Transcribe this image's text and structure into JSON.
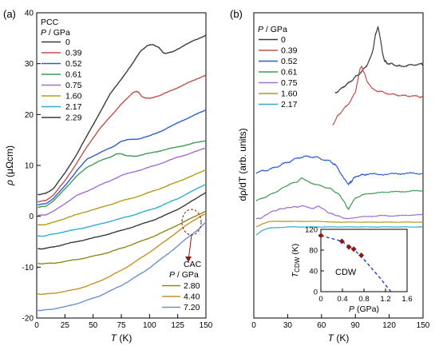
{
  "chart_data": [
    {
      "type": "line",
      "panel_label": "(a)",
      "xlabel_var": "T",
      "xlabel_unit": " (K)",
      "ylabel_var": "ρ",
      "ylabel_unit": " (μΩcm)",
      "xlim": [
        0,
        150
      ],
      "ylim": [
        -20,
        40
      ],
      "xticks": [
        0,
        25,
        50,
        75,
        100,
        125,
        150
      ],
      "yticks": [
        -20,
        -10,
        0,
        10,
        20,
        30,
        40
      ],
      "legend_pcc_title": "PCC",
      "legend_pcc_var": "P",
      "legend_pcc_unit": " / GPa",
      "legend_cac_title": "CAC",
      "legend_cac_var": "P",
      "legend_cac_unit": " / GPa",
      "series": [
        {
          "name": "0",
          "color": "#3a3a3a",
          "legend": "pcc",
          "x": [
            1,
            3,
            8,
            15,
            25,
            35,
            45,
            55,
            65,
            75,
            85,
            92,
            98,
            103,
            108,
            112,
            115,
            120,
            130,
            140,
            150
          ],
          "y": [
            4.3,
            4.3,
            4.5,
            5.5,
            8.5,
            12,
            16,
            20,
            24,
            27,
            30,
            32.5,
            33.5,
            33.8,
            33.2,
            32.2,
            32.0,
            32.3,
            33.5,
            34.6,
            35.6
          ]
        },
        {
          "name": "0.39",
          "color": "#c0504d",
          "legend": "pcc",
          "x": [
            1,
            3,
            8,
            15,
            25,
            35,
            45,
            55,
            65,
            70,
            75,
            80,
            85,
            88,
            90,
            93,
            97,
            100,
            110,
            120,
            130,
            140,
            150
          ],
          "y": [
            2.9,
            2.9,
            3.1,
            4.2,
            7,
            10.3,
            13.8,
            17,
            19.5,
            20.8,
            22,
            23.2,
            24.2,
            24.6,
            24.4,
            23.6,
            23.2,
            23.2,
            23.8,
            24.8,
            25.8,
            26.8,
            27.8
          ]
        },
        {
          "name": "0.52",
          "color": "#2e5cd0",
          "legend": "pcc",
          "x": [
            1,
            3,
            8,
            15,
            25,
            35,
            45,
            55,
            65,
            70,
            75,
            80,
            85,
            90,
            100,
            110,
            120,
            130,
            140,
            150
          ],
          "y": [
            2.3,
            2.3,
            2.5,
            3.5,
            6,
            8.8,
            11.3,
            12.4,
            13.4,
            14,
            14.7,
            15.1,
            15.1,
            15.2,
            15.8,
            16.7,
            17.8,
            18.9,
            19.9,
            20.9
          ]
        },
        {
          "name": "0.61",
          "color": "#3f9a55",
          "legend": "pcc",
          "x": [
            1,
            3,
            8,
            15,
            25,
            35,
            45,
            55,
            65,
            70,
            75,
            80,
            85,
            90,
            100,
            110,
            120,
            130,
            140,
            150
          ],
          "y": [
            1.8,
            1.8,
            2,
            3,
            5.4,
            7.8,
            9.7,
            10.8,
            11.6,
            12.2,
            12.3,
            11.9,
            11.8,
            11.9,
            12.4,
            12.9,
            13.4,
            13.9,
            14.4,
            14.9
          ]
        },
        {
          "name": "0.75",
          "color": "#a46fcc",
          "legend": "pcc",
          "x": [
            1,
            3,
            8,
            15,
            25,
            35,
            45,
            55,
            65,
            75,
            85,
            95,
            105,
            115,
            125,
            135,
            150
          ],
          "y": [
            0.2,
            0.2,
            0.3,
            1,
            2.5,
            4,
            5,
            6,
            7,
            8,
            8.7,
            9.3,
            10,
            10.8,
            11.6,
            12.3,
            13.4
          ]
        },
        {
          "name": "1.60",
          "color": "#b59b1c",
          "legend": "pcc",
          "x": [
            1,
            3,
            8,
            15,
            25,
            35,
            45,
            55,
            65,
            75,
            85,
            95,
            105,
            115,
            125,
            135,
            150
          ],
          "y": [
            -1.7,
            -1.7,
            -1.6,
            -1.2,
            -0.4,
            0.3,
            1,
            1.6,
            2.3,
            3,
            3.6,
            4.3,
            5.1,
            5.9,
            6.8,
            7.7,
            9.1
          ]
        },
        {
          "name": "2.17",
          "color": "#31aecf",
          "legend": "pcc",
          "x": [
            1,
            3,
            8,
            15,
            25,
            35,
            45,
            55,
            65,
            75,
            85,
            95,
            105,
            115,
            125,
            135,
            150
          ],
          "y": [
            -3.9,
            -3.9,
            -3.8,
            -3.5,
            -3,
            -2.6,
            -2.1,
            -1.6,
            -1,
            -0.4,
            0.2,
            0.9,
            1.6,
            2.5,
            3.5,
            4.6,
            6.3
          ]
        },
        {
          "name": "2.29",
          "color": "#3a3a3a",
          "legend": "pcc",
          "x": [
            1,
            3,
            8,
            15,
            25,
            35,
            45,
            55,
            65,
            75,
            85,
            95,
            105,
            115,
            125,
            135,
            150
          ],
          "y": [
            -6.4,
            -6.4,
            -6.3,
            -6,
            -5.5,
            -5,
            -4.5,
            -4,
            -3.4,
            -2.8,
            -2.1,
            -1.4,
            -0.6,
            0.3,
            1.4,
            2.6,
            4.7
          ]
        },
        {
          "name": "2.80",
          "color": "#8a8a1c",
          "legend": "cac",
          "x": [
            1,
            3,
            8,
            15,
            25,
            35,
            45,
            55,
            65,
            75,
            85,
            95,
            105,
            115,
            125,
            135,
            145,
            150
          ],
          "y": [
            -9.3,
            -9.3,
            -9.3,
            -9.2,
            -8.9,
            -8.5,
            -8.1,
            -7.6,
            -7,
            -6.3,
            -5.5,
            -4.7,
            -3.8,
            -2.8,
            -1.7,
            -0.6,
            0.5,
            1
          ]
        },
        {
          "name": "4.40",
          "color": "#c8902a",
          "legend": "cac",
          "x": [
            1,
            3,
            8,
            15,
            25,
            35,
            45,
            55,
            65,
            75,
            85,
            95,
            105,
            115,
            125,
            135,
            145,
            150
          ],
          "y": [
            -15.3,
            -15.3,
            -15.3,
            -15.1,
            -14.8,
            -14.3,
            -13.7,
            -12.8,
            -11.8,
            -10.6,
            -9.3,
            -7.8,
            -6.3,
            -4.7,
            -3,
            -1.4,
            0,
            0.5
          ]
        },
        {
          "name": "7.20",
          "color": "#6b8fd0",
          "legend": "cac",
          "x": [
            1,
            3,
            8,
            15,
            25,
            35,
            45,
            55,
            65,
            75,
            85,
            95,
            105,
            115,
            125,
            135,
            145,
            150
          ],
          "y": [
            -18.5,
            -18.5,
            -18.4,
            -18.2,
            -17.8,
            -17.2,
            -16.5,
            -15.7,
            -14.7,
            -13.6,
            -12.3,
            -10.9,
            -9.3,
            -7.6,
            -5.8,
            -4,
            -2.2,
            -1.2
          ]
        }
      ]
    },
    {
      "type": "line",
      "panel_label": "(b)",
      "xlabel_var": "T",
      "xlabel_unit": " (K)",
      "ylabel": "dρ/dT (arb. units)",
      "xlim": [
        0,
        150
      ],
      "xticks": [
        0,
        30,
        60,
        90,
        120,
        150
      ],
      "legend_var": "P",
      "legend_unit": " / GPa",
      "series": [
        {
          "name": "0",
          "color": "#3a3a3a",
          "x": [
            72,
            76,
            80,
            84,
            88,
            92,
            96,
            100,
            103,
            106,
            108,
            110,
            112,
            114,
            116,
            118,
            122,
            126,
            130,
            136,
            142,
            148,
            150
          ],
          "y": [
            100,
            97,
            92,
            88,
            83,
            78,
            73,
            66,
            58,
            44,
            26,
            18,
            30,
            50,
            60,
            63,
            64,
            66,
            67,
            66,
            65,
            64,
            64
          ]
        },
        {
          "name": "0.39",
          "color": "#c0504d",
          "x": [
            70,
            74,
            78,
            82,
            86,
            90,
            92,
            94,
            96,
            98,
            100,
            104,
            110,
            116,
            122,
            128,
            134,
            140,
            146,
            150
          ],
          "y": [
            140,
            130,
            123,
            117,
            110,
            99,
            86,
            70,
            68,
            76,
            84,
            94,
            98,
            100,
            102,
            103,
            104,
            104,
            105,
            105
          ]
        },
        {
          "name": "0.52",
          "color": "#2e5cd0",
          "x": [
            2,
            8,
            14,
            20,
            26,
            32,
            38,
            44,
            50,
            56,
            62,
            68,
            72,
            76,
            80,
            84,
            86,
            88,
            92,
            96,
            100,
            110,
            120,
            130,
            140,
            150
          ],
          "y": [
            200,
            198,
            196,
            193,
            189,
            186,
            182,
            180,
            180,
            181,
            184,
            186,
            190,
            198,
            208,
            214,
            212,
            208,
            204,
            203,
            202,
            202,
            202,
            201,
            201,
            201
          ]
        },
        {
          "name": "0.61",
          "color": "#3f9a55",
          "x": [
            2,
            8,
            14,
            20,
            26,
            32,
            38,
            42,
            46,
            50,
            56,
            62,
            68,
            72,
            76,
            80,
            82,
            84,
            86,
            90,
            96,
            104,
            112,
            120,
            130,
            140,
            150
          ],
          "y": [
            235,
            232,
            228,
            224,
            219,
            214,
            212,
            207,
            209,
            213,
            215,
            218,
            220,
            224,
            228,
            236,
            242,
            246,
            240,
            232,
            228,
            226,
            225,
            224,
            224,
            223,
            223
          ]
        },
        {
          "name": "0.75",
          "color": "#a46fcc",
          "x": [
            2,
            6,
            10,
            14,
            18,
            22,
            26,
            30,
            34,
            38,
            42,
            46,
            50,
            54,
            58,
            62,
            66,
            70,
            74,
            78,
            84,
            90,
            100,
            110,
            120,
            130,
            140,
            150
          ],
          "y": [
            258,
            257,
            254,
            250,
            248,
            246,
            245,
            244,
            243,
            243,
            242,
            242,
            245,
            244,
            242,
            246,
            250,
            252,
            254,
            256,
            258,
            256,
            255,
            254,
            254,
            254,
            253,
            253
          ]
        },
        {
          "name": "1.60",
          "color": "#b59b1c",
          "x": [
            2,
            5,
            8,
            12,
            16,
            20,
            30,
            40,
            50,
            60,
            70,
            80,
            90,
            100,
            110,
            120,
            130,
            140,
            150
          ],
          "y": [
            268,
            266,
            264,
            262,
            261,
            261,
            261,
            261,
            261,
            261,
            262,
            262,
            262,
            262,
            262,
            262,
            262,
            262,
            262
          ]
        },
        {
          "name": "2.17",
          "color": "#31aecf",
          "x": [
            2,
            5,
            8,
            12,
            16,
            20,
            30,
            40,
            50,
            60,
            70,
            80,
            90,
            100,
            110,
            120,
            130,
            140,
            150
          ],
          "y": [
            278,
            275,
            272,
            270,
            269,
            269,
            268,
            268,
            268,
            268,
            268,
            268,
            268,
            268,
            268,
            268,
            268,
            268,
            268
          ]
        }
      ]
    },
    {
      "type": "scatter",
      "label": "CDW",
      "xlabel_var": "P",
      "xlabel_unit": " (GPa)",
      "ylabel_var": "T",
      "ylabel_sub": "CDW",
      "ylabel_unit": " (K)",
      "xlim": [
        0,
        1.6
      ],
      "ylim": [
        0,
        120
      ],
      "xticks": [
        0,
        0.4,
        0.8,
        1.2,
        1.6
      ],
      "yticks": [
        0,
        40,
        80,
        120
      ],
      "points": {
        "x": [
          0,
          0.39,
          0.52,
          0.61,
          0.75
        ],
        "y": [
          108,
          97,
          86,
          82,
          70
        ]
      },
      "fit": {
        "x": [
          0,
          0.39,
          0.52,
          0.61,
          0.75,
          0.9,
          1.1,
          1.3
        ],
        "y": [
          108,
          97,
          87,
          81,
          68,
          50,
          26,
          0
        ]
      },
      "point_color": "#8b1a1a",
      "fit_color": "#1f3fbf"
    }
  ]
}
